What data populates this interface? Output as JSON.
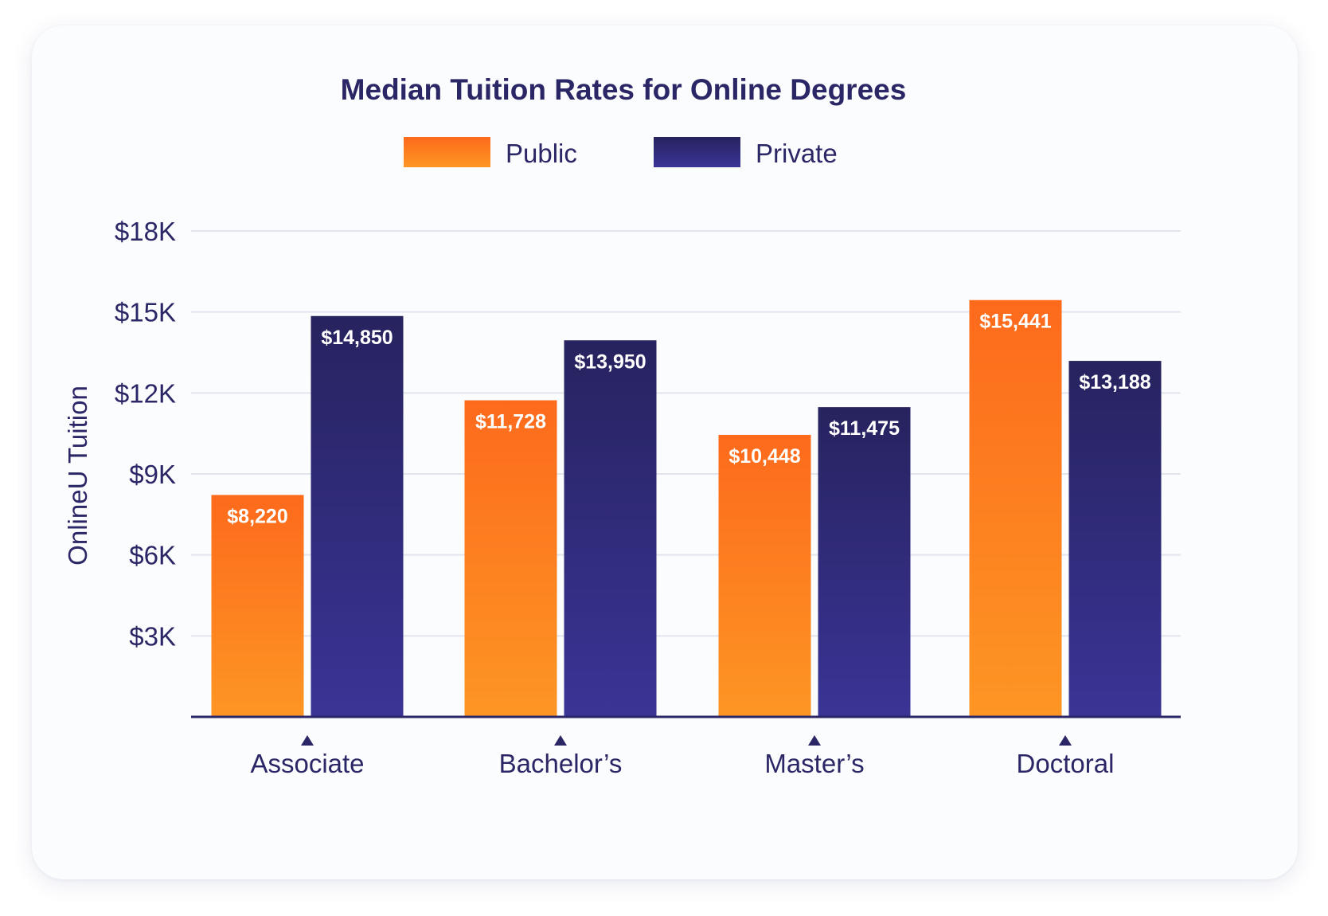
{
  "chart_data": {
    "type": "bar",
    "title": "Median Tuition Rates for Online Degrees",
    "ylabel": "OnlineU Tuition",
    "xlabel": "",
    "categories": [
      "Associate",
      "Bachelor’s",
      "Master’s",
      "Doctoral"
    ],
    "series": [
      {
        "name": "Public",
        "values": [
          8220,
          11728,
          10448,
          15441
        ],
        "labels": [
          "$8,220",
          "$11,728",
          "$10,448",
          "$15,441"
        ]
      },
      {
        "name": "Private",
        "values": [
          14850,
          13950,
          11475,
          13188
        ],
        "labels": [
          "$14,850",
          "$13,950",
          "$11,475",
          "$13,188"
        ]
      }
    ],
    "ylim": [
      0,
      18000
    ],
    "yticks": [
      3000,
      6000,
      9000,
      12000,
      15000,
      18000
    ],
    "ytick_labels": [
      "$3K",
      "$6K",
      "$9K",
      "$12K",
      "$15K",
      "$18K"
    ],
    "grid": true,
    "legend_position": "top-center"
  },
  "colors": {
    "text": "#2b2766",
    "grid": "#e3e5ee",
    "axis": "#2b2766",
    "public_top": "#fd6a1c",
    "public_bottom": "#fd9624",
    "private_top": "#27235f",
    "private_bottom": "#3a3496",
    "bar_label": "#ffffff"
  }
}
